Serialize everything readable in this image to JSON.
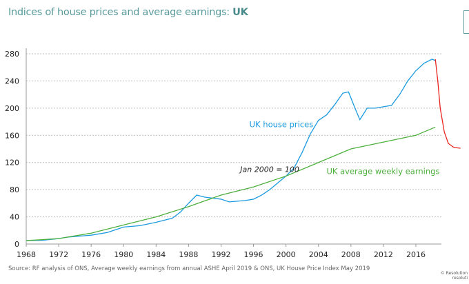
{
  "title": {
    "main": "Indices of house prices and average earnings: ",
    "bold": "UK"
  },
  "source": "Source: RF analysis of ONS, Average weekly earnings from annual ASHE April 2019 & ONS, UK House Price Index May 2019",
  "copyright": [
    "© Resolution",
    "resoluti"
  ],
  "chart_data": {
    "type": "line",
    "xlim": [
      1968,
      2021.5
    ],
    "ylim": [
      0,
      290
    ],
    "xticks": [
      1968,
      1972,
      1976,
      1980,
      1984,
      1988,
      1992,
      1996,
      2000,
      2004,
      2008,
      2012,
      2016
    ],
    "yticks": [
      0,
      40,
      80,
      120,
      160,
      200,
      240,
      280
    ],
    "grid": "horizontal dashed",
    "annotations": [
      {
        "text": "Jan 2000 = 100",
        "x": 1998,
        "y": 106
      }
    ],
    "series": [
      {
        "name": "UK house prices",
        "color": "#1a9ae0",
        "label_at": [
          1995.5,
          172
        ],
        "x": [
          1968,
          1970,
          1972,
          1973,
          1976,
          1978,
          1980,
          1982,
          1984,
          1986,
          1987,
          1988,
          1989,
          1990,
          1992,
          1993,
          1995,
          1996,
          1997,
          1998,
          1999,
          2000,
          2001,
          2002,
          2003,
          2004,
          2005,
          2006,
          2007,
          2007.7,
          2008.5,
          2009.1,
          2010,
          2011,
          2012,
          2013,
          2014,
          2015,
          2016,
          2017,
          2018,
          2018.4
        ],
        "y": [
          5,
          5.5,
          8,
          10,
          13,
          17,
          25,
          27,
          32,
          38,
          47,
          60,
          72,
          69,
          66,
          62,
          64,
          66,
          72,
          80,
          90,
          100,
          112,
          135,
          162,
          182,
          190,
          205,
          222,
          224,
          200,
          183,
          200,
          200,
          202,
          204,
          220,
          240,
          255,
          266,
          272,
          270
        ]
      },
      {
        "name": "UK average weekly earnings",
        "color": "#4caf3c",
        "label_at": [
          2005,
          103
        ],
        "x": [
          1968,
          1972,
          1976,
          1980,
          1984,
          1988,
          1992,
          1996,
          2000,
          2004,
          2008,
          2012,
          2016,
          2018.4
        ],
        "y": [
          5,
          8,
          16,
          28,
          40,
          55,
          72,
          84,
          100,
          120,
          140,
          150,
          160,
          172
        ]
      },
      {
        "color": "#e8231e",
        "x": [
          2018.4,
          2018.7,
          2019,
          2019.5,
          2020,
          2020.7,
          2021.5
        ],
        "y": [
          272,
          240,
          200,
          165,
          148,
          142,
          141
        ]
      }
    ]
  }
}
